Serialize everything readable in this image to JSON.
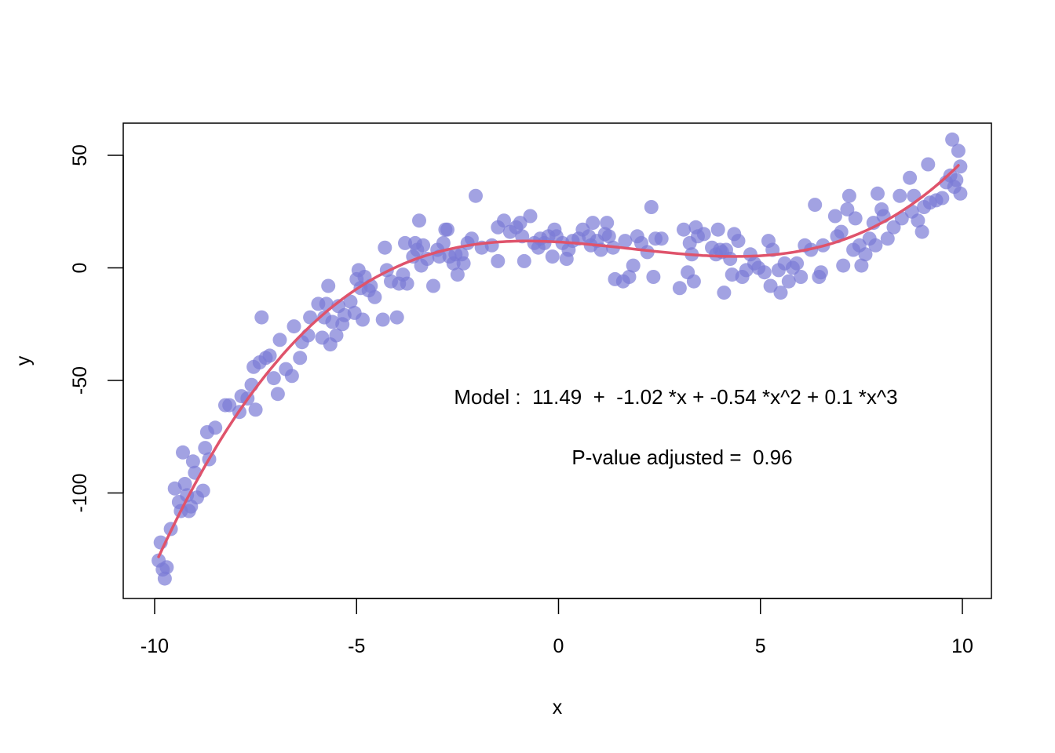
{
  "chart_data": {
    "type": "scatter",
    "title": "",
    "xlabel": "x",
    "ylabel": "y",
    "xlim": [
      -10.7,
      10.7
    ],
    "ylim": [
      -147,
      64
    ],
    "xticks": [
      -10,
      -5,
      0,
      5,
      10
    ],
    "xtick_labels": [
      "-10",
      "-5",
      "0",
      "5",
      "10"
    ],
    "yticks": [
      -100,
      -50,
      0,
      50
    ],
    "ytick_labels": [
      "-100",
      "-50",
      "0",
      "50"
    ],
    "grid": false,
    "legend": "none",
    "point_color": "#7b7bd6",
    "curve_color": "#df536b",
    "annotations": [
      "Model :  11.49  +  -1.02 *x + -0.54 *x^2 + 0.1 *x^3",
      "P-value adjusted =  0.96"
    ],
    "series": [
      {
        "kind": "points",
        "points": [
          [
            -9.9,
            -130
          ],
          [
            -9.85,
            -122
          ],
          [
            -9.8,
            -134
          ],
          [
            -9.75,
            -138
          ],
          [
            -9.7,
            -133
          ],
          [
            -9.6,
            -116
          ],
          [
            -9.5,
            -98
          ],
          [
            -9.4,
            -104
          ],
          [
            -9.35,
            -108
          ],
          [
            -9.3,
            -82
          ],
          [
            -9.25,
            -96
          ],
          [
            -9.2,
            -101
          ],
          [
            -9.15,
            -108
          ],
          [
            -9.1,
            -106
          ],
          [
            -9.05,
            -86
          ],
          [
            -9.0,
            -91
          ],
          [
            -8.95,
            -102
          ],
          [
            -8.8,
            -99
          ],
          [
            -8.75,
            -80
          ],
          [
            -8.7,
            -73
          ],
          [
            -8.65,
            -85
          ],
          [
            -8.5,
            -71
          ],
          [
            -8.25,
            -61
          ],
          [
            -8.15,
            -61
          ],
          [
            -7.9,
            -64
          ],
          [
            -7.85,
            -57
          ],
          [
            -7.7,
            -58
          ],
          [
            -7.6,
            -52
          ],
          [
            -7.55,
            -44
          ],
          [
            -7.5,
            -63
          ],
          [
            -7.4,
            -42
          ],
          [
            -7.35,
            -22
          ],
          [
            -7.25,
            -40
          ],
          [
            -7.15,
            -39
          ],
          [
            -7.05,
            -49
          ],
          [
            -6.95,
            -56
          ],
          [
            -6.9,
            -32
          ],
          [
            -6.75,
            -45
          ],
          [
            -6.6,
            -48
          ],
          [
            -6.55,
            -26
          ],
          [
            -6.4,
            -40
          ],
          [
            -6.35,
            -33
          ],
          [
            -6.2,
            -30
          ],
          [
            -6.15,
            -22
          ],
          [
            -5.95,
            -16
          ],
          [
            -5.85,
            -31
          ],
          [
            -5.8,
            -22
          ],
          [
            -5.75,
            -16
          ],
          [
            -5.7,
            -8
          ],
          [
            -5.65,
            -34
          ],
          [
            -5.6,
            -24
          ],
          [
            -5.5,
            -30
          ],
          [
            -5.45,
            -17
          ],
          [
            -5.35,
            -25
          ],
          [
            -5.3,
            -21
          ],
          [
            -5.15,
            -15
          ],
          [
            -5.05,
            -20
          ],
          [
            -5.0,
            -5
          ],
          [
            -4.95,
            -1
          ],
          [
            -4.9,
            -9
          ],
          [
            -4.85,
            -23
          ],
          [
            -4.8,
            -4
          ],
          [
            -4.7,
            -10
          ],
          [
            -4.65,
            -8
          ],
          [
            -4.55,
            -13
          ],
          [
            -4.35,
            -23
          ],
          [
            -4.3,
            9
          ],
          [
            -4.25,
            -1
          ],
          [
            -4.15,
            -6
          ],
          [
            -4.0,
            -22
          ],
          [
            -3.95,
            -7
          ],
          [
            -3.85,
            -3
          ],
          [
            -3.8,
            11
          ],
          [
            -3.75,
            -7
          ],
          [
            -3.6,
            5
          ],
          [
            -3.55,
            11
          ],
          [
            -3.5,
            8
          ],
          [
            -3.45,
            21
          ],
          [
            -3.4,
            1
          ],
          [
            -3.35,
            10
          ],
          [
            -3.25,
            4
          ],
          [
            -3.1,
            -8
          ],
          [
            -3.0,
            8
          ],
          [
            -2.95,
            5
          ],
          [
            -2.85,
            11
          ],
          [
            -2.8,
            17
          ],
          [
            -2.75,
            17
          ],
          [
            -2.7,
            5
          ],
          [
            -2.6,
            2
          ],
          [
            -2.55,
            6
          ],
          [
            -2.5,
            -3
          ],
          [
            -2.4,
            6
          ],
          [
            -2.35,
            2
          ],
          [
            -2.25,
            11
          ],
          [
            -2.15,
            13
          ],
          [
            -2.05,
            32
          ],
          [
            -1.9,
            9
          ],
          [
            -1.65,
            10
          ],
          [
            -1.5,
            3
          ],
          [
            -1.5,
            18
          ],
          [
            -1.35,
            21
          ],
          [
            -1.2,
            16
          ],
          [
            -1.05,
            18
          ],
          [
            -0.95,
            20
          ],
          [
            -0.9,
            14
          ],
          [
            -0.85,
            3
          ],
          [
            -0.7,
            23
          ],
          [
            -0.6,
            11
          ],
          [
            -0.5,
            9
          ],
          [
            -0.45,
            13
          ],
          [
            -0.35,
            11
          ],
          [
            -0.25,
            14
          ],
          [
            -0.15,
            5
          ],
          [
            -0.1,
            17
          ],
          [
            -0.05,
            14
          ],
          [
            0.1,
            11
          ],
          [
            0.2,
            4
          ],
          [
            0.25,
            8
          ],
          [
            0.35,
            12
          ],
          [
            0.5,
            13
          ],
          [
            0.6,
            17
          ],
          [
            0.75,
            14
          ],
          [
            0.8,
            10
          ],
          [
            0.85,
            20
          ],
          [
            0.95,
            12
          ],
          [
            1.05,
            8
          ],
          [
            1.15,
            15
          ],
          [
            1.2,
            20
          ],
          [
            1.25,
            14
          ],
          [
            1.35,
            9
          ],
          [
            1.4,
            -5
          ],
          [
            1.6,
            -6
          ],
          [
            1.65,
            12
          ],
          [
            1.75,
            -4
          ],
          [
            1.85,
            1
          ],
          [
            1.95,
            14
          ],
          [
            2.05,
            11
          ],
          [
            2.2,
            7
          ],
          [
            2.3,
            27
          ],
          [
            2.35,
            -4
          ],
          [
            2.4,
            13
          ],
          [
            2.55,
            13
          ],
          [
            3.0,
            -9
          ],
          [
            3.1,
            17
          ],
          [
            3.2,
            -2
          ],
          [
            3.25,
            11
          ],
          [
            3.3,
            6
          ],
          [
            3.35,
            -6
          ],
          [
            3.4,
            18
          ],
          [
            3.45,
            14
          ],
          [
            3.6,
            15
          ],
          [
            3.8,
            9
          ],
          [
            3.9,
            6
          ],
          [
            3.95,
            17
          ],
          [
            4.0,
            8
          ],
          [
            4.05,
            7
          ],
          [
            4.1,
            -11
          ],
          [
            4.15,
            8
          ],
          [
            4.25,
            4
          ],
          [
            4.3,
            -3
          ],
          [
            4.35,
            15
          ],
          [
            4.45,
            12
          ],
          [
            4.55,
            -4
          ],
          [
            4.65,
            -1
          ],
          [
            4.75,
            6
          ],
          [
            4.85,
            2
          ],
          [
            4.95,
            0
          ],
          [
            5.1,
            -2
          ],
          [
            5.2,
            12
          ],
          [
            5.25,
            -8
          ],
          [
            5.3,
            8
          ],
          [
            5.45,
            -1
          ],
          [
            5.5,
            -11
          ],
          [
            5.6,
            2
          ],
          [
            5.7,
            -6
          ],
          [
            5.8,
            0
          ],
          [
            5.9,
            2
          ],
          [
            6.0,
            -4
          ],
          [
            6.1,
            10
          ],
          [
            6.25,
            8
          ],
          [
            6.35,
            28
          ],
          [
            6.45,
            -4
          ],
          [
            6.5,
            -2
          ],
          [
            6.55,
            10
          ],
          [
            6.85,
            23
          ],
          [
            6.9,
            14
          ],
          [
            7.0,
            16
          ],
          [
            7.05,
            1
          ],
          [
            7.15,
            26
          ],
          [
            7.2,
            32
          ],
          [
            7.3,
            8
          ],
          [
            7.35,
            22
          ],
          [
            7.45,
            10
          ],
          [
            7.5,
            1
          ],
          [
            7.6,
            6
          ],
          [
            7.7,
            13
          ],
          [
            7.8,
            20
          ],
          [
            7.85,
            10
          ],
          [
            7.9,
            33
          ],
          [
            8.0,
            26
          ],
          [
            8.05,
            23
          ],
          [
            8.15,
            13
          ],
          [
            8.3,
            18
          ],
          [
            8.45,
            32
          ],
          [
            8.5,
            22
          ],
          [
            8.7,
            40
          ],
          [
            8.75,
            25
          ],
          [
            8.8,
            32
          ],
          [
            8.9,
            21
          ],
          [
            9.0,
            16
          ],
          [
            9.05,
            27
          ],
          [
            9.15,
            46
          ],
          [
            9.2,
            29
          ],
          [
            9.35,
            30
          ],
          [
            9.5,
            31
          ],
          [
            9.6,
            38
          ],
          [
            9.7,
            41
          ],
          [
            9.75,
            57
          ],
          [
            9.8,
            36
          ],
          [
            9.85,
            39
          ],
          [
            9.9,
            52
          ],
          [
            9.95,
            45
          ],
          [
            9.95,
            33
          ]
        ]
      },
      {
        "kind": "fitted_curve",
        "equation": {
          "intercept": 11.49,
          "c1": -1.02,
          "c2": -0.54,
          "c3": 0.1
        },
        "x_range": [
          -9.9,
          9.9
        ]
      }
    ]
  }
}
